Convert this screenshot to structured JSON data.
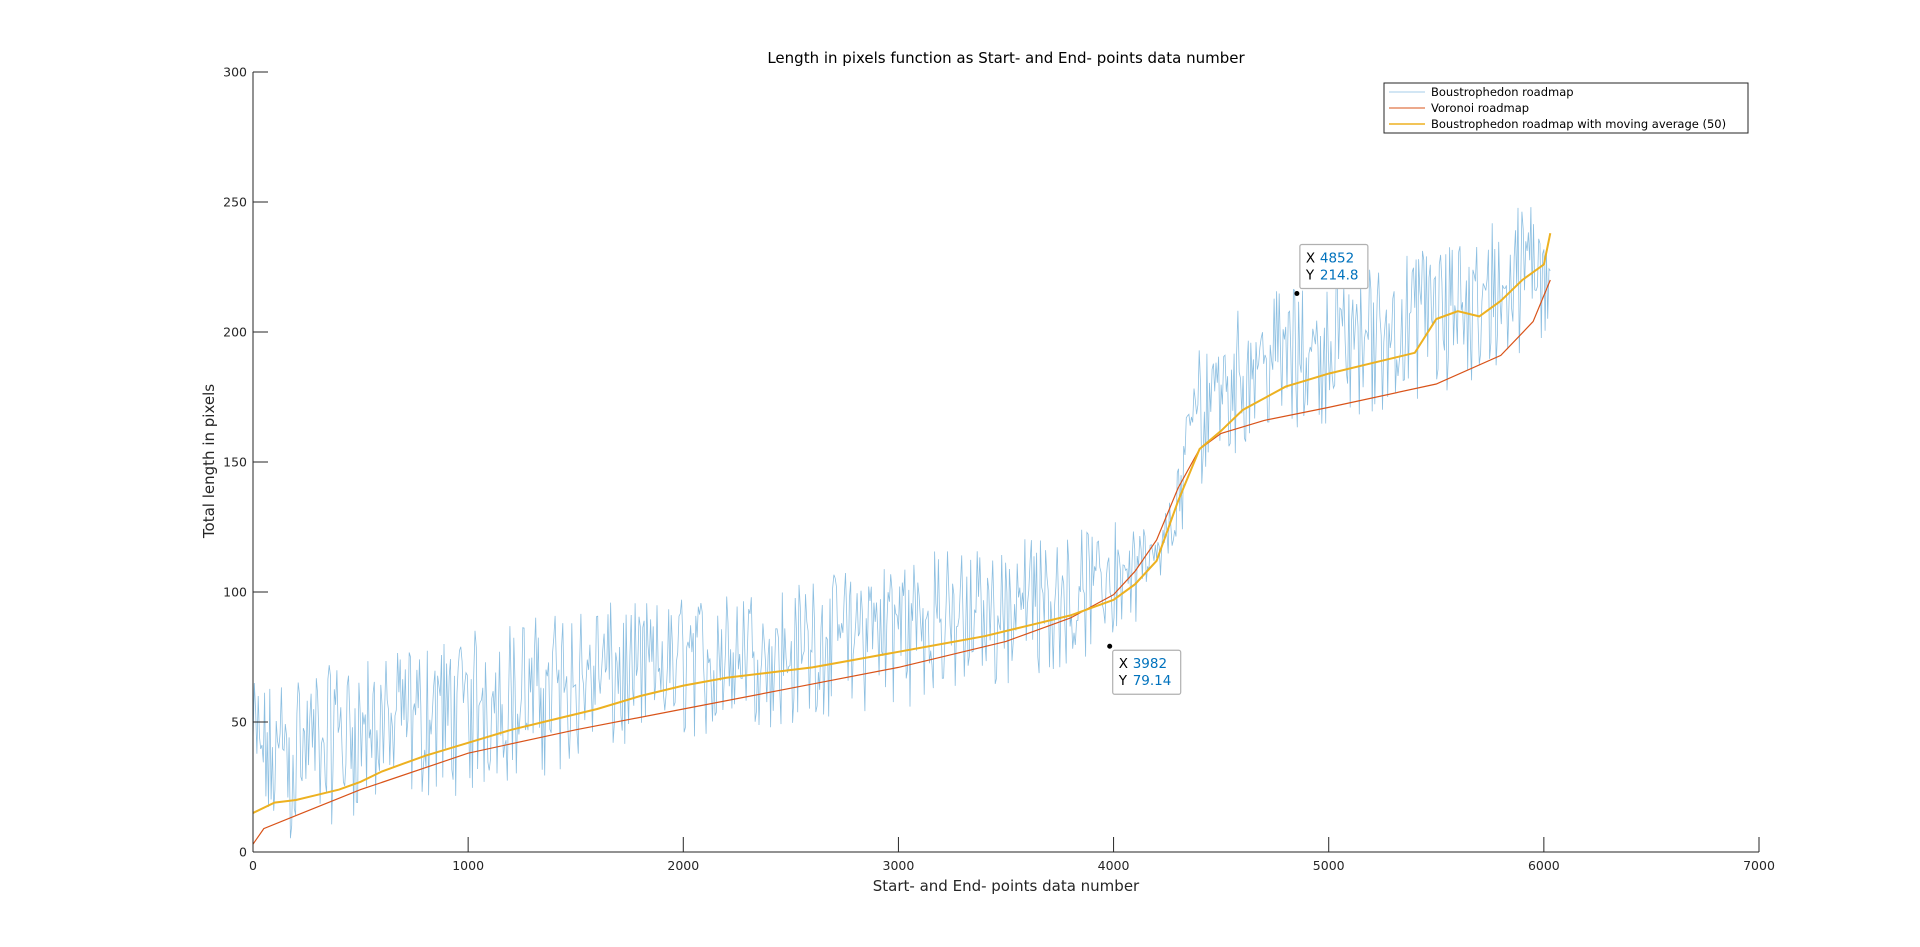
{
  "chart_data": {
    "type": "line",
    "title": "Length in pixels function as Start- and End- points data number",
    "xlabel": "Start- and End- points data number",
    "ylabel": "Total length in pixels",
    "xlim": [
      0,
      7000
    ],
    "ylim": [
      0,
      300
    ],
    "xticks": [
      0,
      1000,
      2000,
      3000,
      4000,
      5000,
      6000,
      7000
    ],
    "yticks": [
      0,
      50,
      100,
      150,
      200,
      250,
      300
    ],
    "grid": false,
    "legend_position": "top-right",
    "series": [
      {
        "name": "Boustrophedon roadmap",
        "color": "#0072bd",
        "kind": "noisy",
        "x": [
          0,
          200,
          600,
          1000,
          1500,
          2000,
          2500,
          3000,
          3500,
          3900,
          4100,
          4200,
          4300,
          4400,
          4500,
          4700,
          5000,
          5500,
          5800,
          6000,
          6030
        ],
        "lower": [
          0,
          5,
          18,
          22,
          32,
          43,
          48,
          55,
          63,
          75,
          88,
          100,
          118,
          140,
          150,
          160,
          165,
          172,
          180,
          195,
          205
        ],
        "upper": [
          65,
          70,
          75,
          85,
          95,
          98,
          103,
          115,
          120,
          125,
          130,
          120,
          150,
          200,
          210,
          215,
          220,
          235,
          245,
          255,
          258
        ]
      },
      {
        "name": "Voronoi roadmap",
        "color": "#d95319",
        "x": [
          0,
          50,
          200,
          500,
          1000,
          1500,
          2000,
          2500,
          3000,
          3500,
          3800,
          4000,
          4100,
          4200,
          4300,
          4400,
          4500,
          4700,
          5000,
          5500,
          5800,
          5950,
          6030
        ],
        "values": [
          3,
          9,
          14,
          24,
          38,
          47,
          55,
          63,
          71,
          81,
          90,
          99,
          108,
          120,
          140,
          155,
          161,
          166,
          171,
          180,
          191,
          204,
          220
        ]
      },
      {
        "name": "Boustrophedon roadmap with moving average (50)",
        "color": "#edb120",
        "x": [
          0,
          100,
          200,
          300,
          400,
          500,
          600,
          700,
          800,
          1000,
          1200,
          1400,
          1600,
          1800,
          2000,
          2200,
          2400,
          2600,
          2800,
          3000,
          3200,
          3400,
          3600,
          3800,
          4000,
          4100,
          4200,
          4300,
          4400,
          4500,
          4600,
          4800,
          5000,
          5200,
          5400,
          5500,
          5600,
          5700,
          5800,
          5900,
          6000,
          6030
        ],
        "values": [
          15,
          19,
          20,
          22,
          24,
          27,
          31,
          34,
          37,
          42,
          47,
          51,
          55,
          60,
          64,
          67,
          69,
          71,
          74,
          77,
          80,
          83,
          87,
          91,
          97,
          103,
          112,
          135,
          155,
          162,
          170,
          179,
          184,
          188,
          192,
          205,
          208,
          206,
          212,
          220,
          226,
          238
        ]
      }
    ],
    "annotations": [
      {
        "x_label": "X",
        "x_value": "4852",
        "y_label": "Y",
        "y_value": "214.8",
        "point": [
          4852,
          214.8
        ]
      },
      {
        "x_label": "X",
        "x_value": "3982",
        "y_label": "Y",
        "y_value": "79.14",
        "point": [
          3982,
          79.14
        ]
      }
    ],
    "colors": {
      "axis": "#262626",
      "datatip_value": "#0072bd"
    }
  }
}
